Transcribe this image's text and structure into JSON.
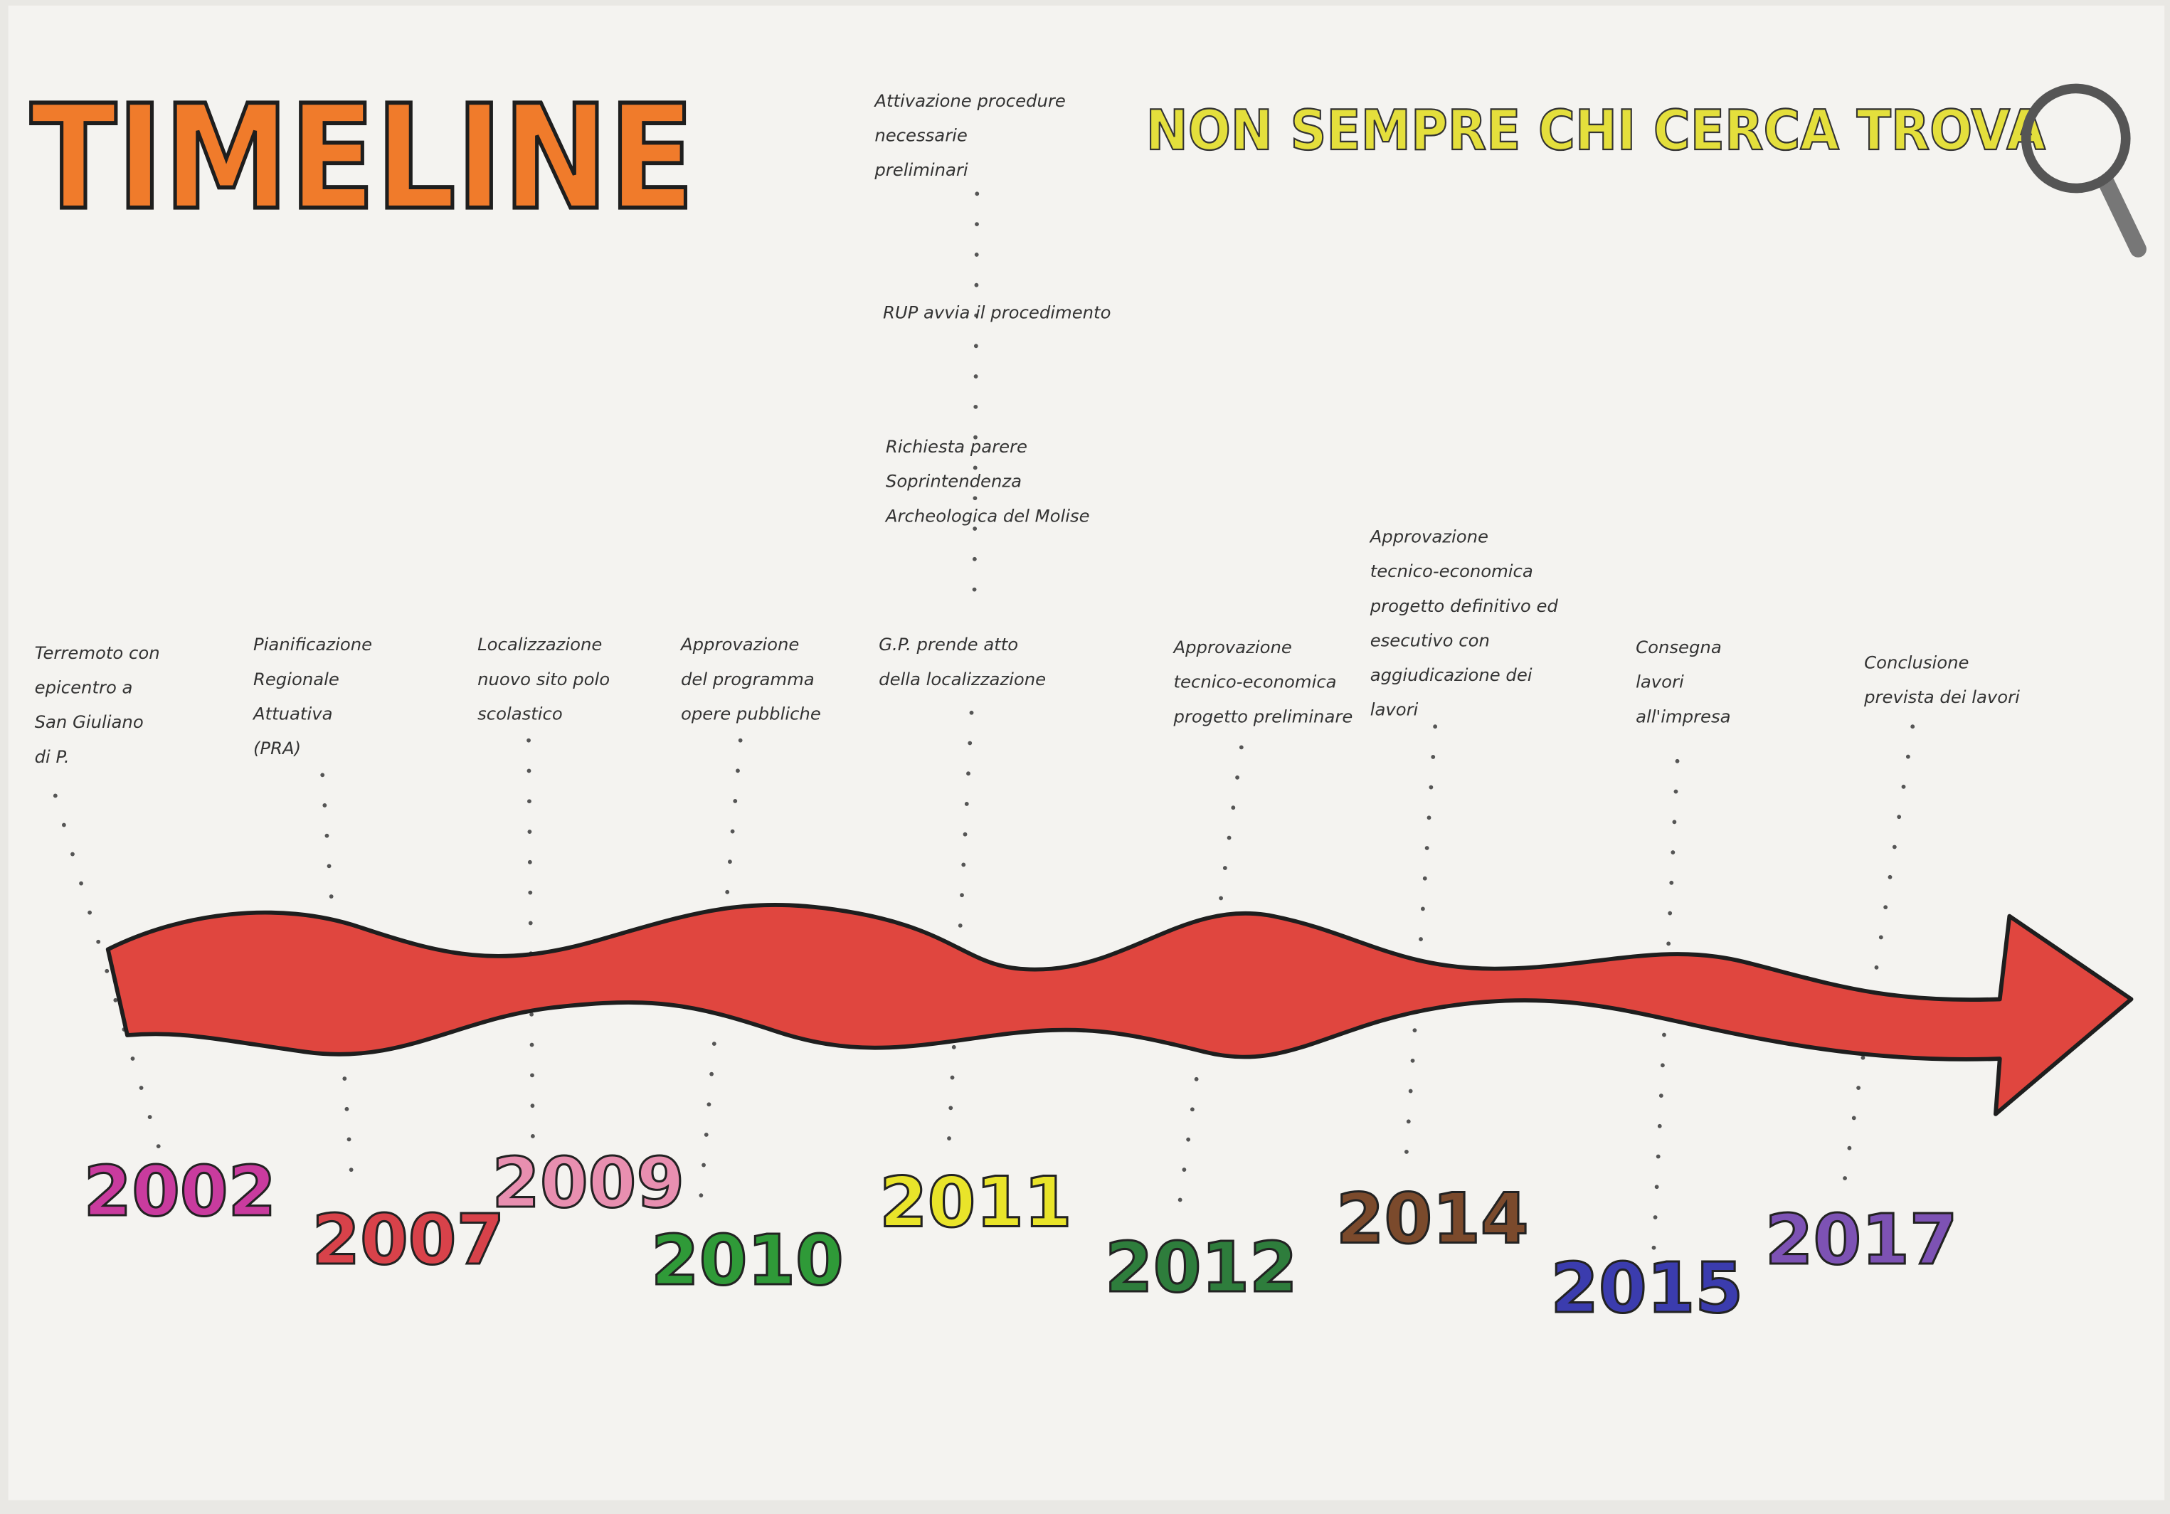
{
  "title": "TIMELINE",
  "slogan": "NON SEMPRE CHI CERCA TROVA",
  "events": [
    {
      "year": "2002",
      "color": "#c93b9e",
      "text": [
        "Terremoto con",
        "epicentro a",
        "San Giuliano",
        "di P."
      ]
    },
    {
      "year": "2007",
      "color": "#d8424a",
      "text": [
        "Pianificazione",
        "Regionale",
        "Attuativa",
        "(PRA)"
      ]
    },
    {
      "year": "2009",
      "color": "#e88fb0",
      "text": [
        "Localizzazione",
        "nuovo sito polo",
        "scolastico"
      ]
    },
    {
      "year": "2010",
      "color": "#2f9a38",
      "text": [
        "Approvazione",
        "del programma",
        "opere pubbliche"
      ]
    },
    {
      "year": "2011",
      "color": "#e9e42a",
      "text": [
        "G.P. prende atto",
        "della localizzazione"
      ],
      "notes": [
        {
          "text": [
            "Richiesta parere",
            "Soprintendenza",
            "Archeologica del Molise"
          ]
        },
        {
          "text": [
            "RUP avvia il procedimento"
          ]
        },
        {
          "text": [
            "Attivazione procedure",
            "necessarie",
            "preliminari"
          ]
        }
      ]
    },
    {
      "year": "2012",
      "color": "#2e7d3c",
      "text": [
        "Approvazione",
        "tecnico-economica",
        "progetto preliminare"
      ]
    },
    {
      "year": "2014",
      "color": "#7b4a2c",
      "text": [
        "Approvazione",
        "tecnico-economica",
        "progetto definitivo ed",
        "esecutivo con",
        "aggiudicazione dei",
        "lavori"
      ]
    },
    {
      "year": "2015",
      "color": "#3b3cae",
      "text": [
        "Consegna",
        "lavori",
        "all'impresa"
      ]
    },
    {
      "year": "2017",
      "color": "#7d52b4",
      "text": [
        "Conclusione",
        "prevista dei lavori"
      ]
    }
  ]
}
